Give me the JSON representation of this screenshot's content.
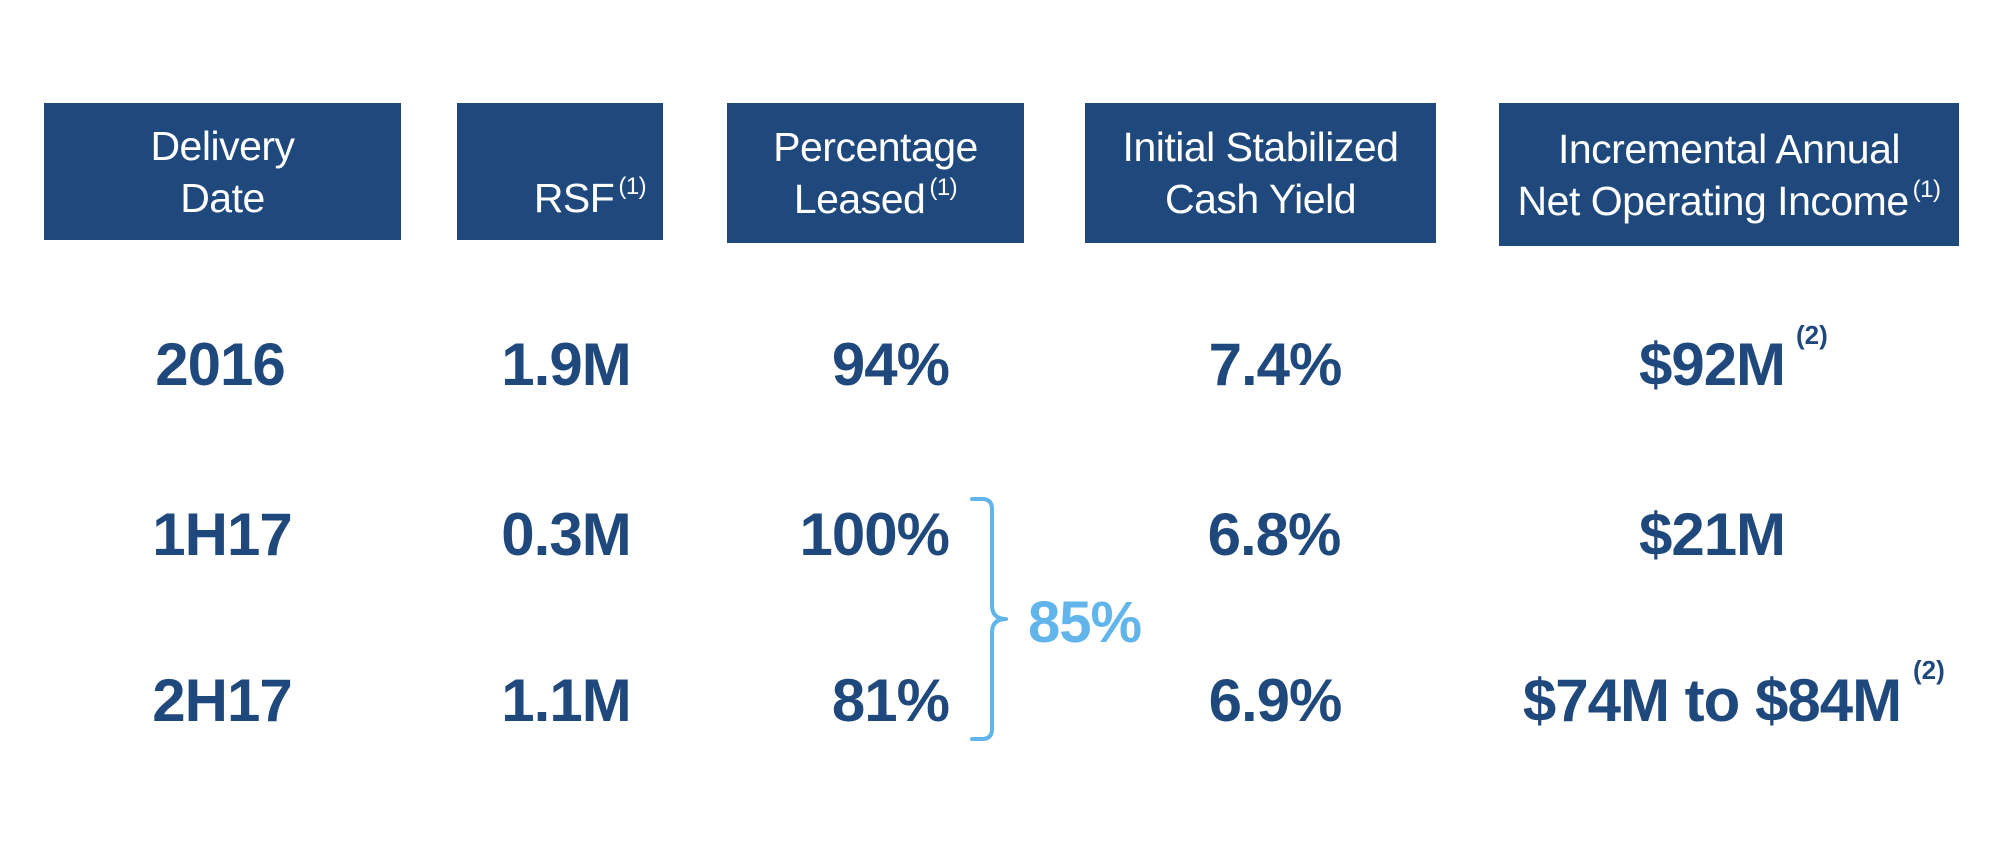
{
  "headers": [
    {
      "line1": "Delivery",
      "line2": "Date",
      "sup": ""
    },
    {
      "line1": "",
      "line2": "RSF",
      "sup": "(1)"
    },
    {
      "line1": "Percentage",
      "line2": "Leased",
      "sup": "(1)"
    },
    {
      "line1": "Initial Stabilized",
      "line2": "Cash Yield",
      "sup": ""
    },
    {
      "line1": "Incremental Annual",
      "line2": "Net Operating Income",
      "sup": "(1)"
    }
  ],
  "rows": [
    {
      "delivery": "2016",
      "rsf": "1.9M",
      "leased": "94%",
      "yield": "7.4%",
      "noi": "$92M",
      "noi_sup": "(2)"
    },
    {
      "delivery": "1H17",
      "rsf": "0.3M",
      "leased": "100%",
      "yield": "6.8%",
      "noi": "$21M",
      "noi_sup": ""
    },
    {
      "delivery": "2H17",
      "rsf": "1.1M",
      "leased": "81%",
      "yield": "6.9%",
      "noi": "$74M to $84M",
      "noi_sup": "(2)"
    }
  ],
  "combined_2017_leased": "85%",
  "colors": {
    "header_bg": "#1f497d",
    "value_text": "#1f497d",
    "accent": "#62b5ea"
  }
}
